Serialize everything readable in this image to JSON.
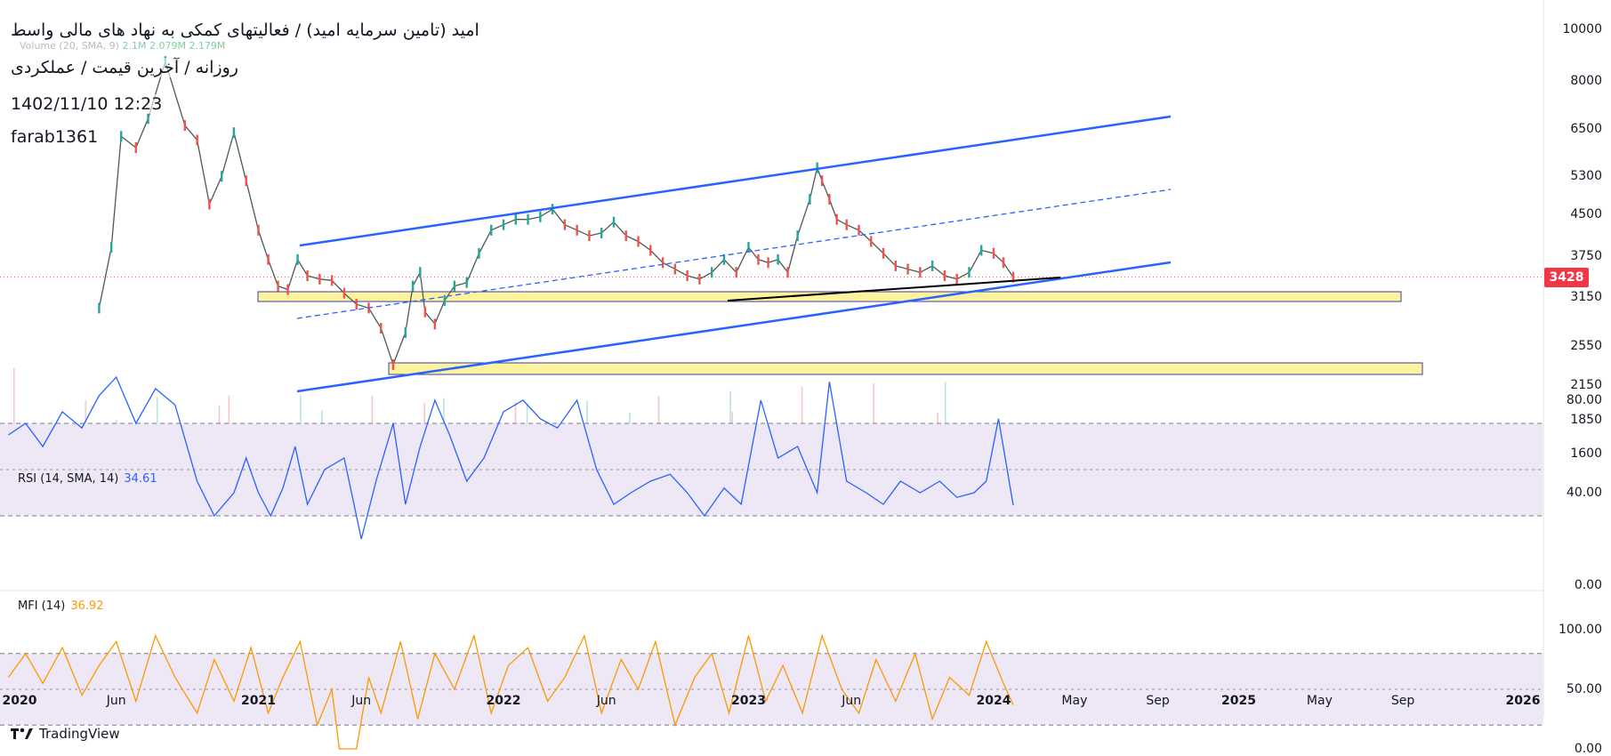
{
  "header": {
    "title": "امید (تامین سرمایه امید) / فعالیتهای کمکی به نهاد های مالی واسط",
    "subtitle": "روزانه / آخرین قیمت / عملکردی",
    "datetime": "1402/11/10 12:23",
    "author": "farab1361",
    "volume_label": "Volume (20, SMA, 9)",
    "volume_values": "2.1‌M  2.079M  2.179M"
  },
  "colors": {
    "up": "#26a69a",
    "down": "#ef5350",
    "channel": "#2962ff",
    "zone_fill": "#fdf39e",
    "zone_border": "#3c3ca0",
    "rsi": "#2962ff",
    "mfi": "#ff9800",
    "band_fill": "#ede7f6",
    "price_tag": "#f23645"
  },
  "chart_data": [
    {
      "type": "line",
      "name": "price",
      "scale": "log",
      "y_ticks": [
        "10000",
        "8000",
        "6500",
        "5300",
        "4500",
        "3750",
        "3150",
        "2550",
        "2150",
        "1850",
        "1600"
      ],
      "y_tick_values": [
        10000,
        8000,
        6500,
        5300,
        4500,
        3750,
        3150,
        2550,
        2150,
        1850,
        1600
      ],
      "x_ticks": [
        {
          "label": "2020",
          "d": 2020.0,
          "bold": true
        },
        {
          "label": "Jun",
          "d": 2020.42,
          "bold": false
        },
        {
          "label": "2021",
          "d": 2021.0,
          "bold": true
        },
        {
          "label": "Jun",
          "d": 2021.42,
          "bold": false
        },
        {
          "label": "2022",
          "d": 2022.0,
          "bold": true
        },
        {
          "label": "Jun",
          "d": 2022.42,
          "bold": false
        },
        {
          "label": "2023",
          "d": 2023.0,
          "bold": true
        },
        {
          "label": "Jun",
          "d": 2023.42,
          "bold": false
        },
        {
          "label": "2024",
          "d": 2024.0,
          "bold": true
        },
        {
          "label": "May",
          "d": 2024.33,
          "bold": false
        },
        {
          "label": "Sep",
          "d": 2024.67,
          "bold": false
        },
        {
          "label": "2025",
          "d": 2025.0,
          "bold": true
        },
        {
          "label": "May",
          "d": 2025.33,
          "bold": false
        },
        {
          "label": "Sep",
          "d": 2025.67,
          "bold": false
        },
        {
          "label": "2026",
          "d": 2026.0,
          "bold": true
        }
      ],
      "last_price": 3428,
      "x": [
        2020.35,
        2020.4,
        2020.44,
        2020.5,
        2020.55,
        2020.62,
        2020.7,
        2020.75,
        2020.8,
        2020.85,
        2020.9,
        2020.95,
        2021.0,
        2021.04,
        2021.08,
        2021.12,
        2021.16,
        2021.2,
        2021.25,
        2021.3,
        2021.35,
        2021.4,
        2021.45,
        2021.5,
        2021.55,
        2021.6,
        2021.63,
        2021.66,
        2021.68,
        2021.72,
        2021.76,
        2021.8,
        2021.85,
        2021.9,
        2021.95,
        2022.0,
        2022.05,
        2022.1,
        2022.15,
        2022.2,
        2022.25,
        2022.3,
        2022.35,
        2022.4,
        2022.45,
        2022.5,
        2022.55,
        2022.6,
        2022.65,
        2022.7,
        2022.75,
        2022.8,
        2022.85,
        2022.9,
        2022.95,
        2023.0,
        2023.04,
        2023.08,
        2023.12,
        2023.16,
        2023.2,
        2023.25,
        2023.28,
        2023.3,
        2023.33,
        2023.36,
        2023.4,
        2023.45,
        2023.5,
        2023.55,
        2023.6,
        2023.65,
        2023.7,
        2023.75,
        2023.8,
        2023.85,
        2023.9,
        2023.95,
        2024.0,
        2024.04,
        2024.08
      ],
      "close": [
        3000,
        3900,
        6300,
        6000,
        6800,
        8700,
        6600,
        6200,
        4700,
        5300,
        6400,
        5200,
        4200,
        3700,
        3300,
        3250,
        3700,
        3450,
        3400,
        3380,
        3200,
        3050,
        3000,
        2750,
        2350,
        2700,
        3300,
        3500,
        2950,
        2800,
        3100,
        3300,
        3350,
        3800,
        4200,
        4300,
        4400,
        4400,
        4450,
        4600,
        4300,
        4200,
        4100,
        4150,
        4350,
        4100,
        4000,
        3850,
        3650,
        3550,
        3450,
        3400,
        3500,
        3700,
        3500,
        3900,
        3700,
        3650,
        3700,
        3500,
        4100,
        4800,
        5500,
        5200,
        4800,
        4400,
        4300,
        4200,
        4000,
        3800,
        3600,
        3550,
        3500,
        3600,
        3450,
        3400,
        3500,
        3850,
        3800,
        3650,
        3428
      ]
    },
    {
      "type": "line",
      "name": "RSI (14, SMA, 14)",
      "value_label": "34.61",
      "y_ticks": [
        "80.00",
        "40.00",
        "0.00"
      ],
      "y_tick_values": [
        80,
        40,
        0
      ],
      "band": [
        30,
        70
      ],
      "x": [
        2019.98,
        2020.05,
        2020.12,
        2020.2,
        2020.28,
        2020.35,
        2020.42,
        2020.5,
        2020.58,
        2020.66,
        2020.75,
        2020.82,
        2020.9,
        2020.95,
        2021.0,
        2021.05,
        2021.1,
        2021.15,
        2021.2,
        2021.27,
        2021.35,
        2021.42,
        2021.48,
        2021.55,
        2021.6,
        2021.66,
        2021.72,
        2021.78,
        2021.85,
        2021.92,
        2022.0,
        2022.08,
        2022.15,
        2022.22,
        2022.3,
        2022.38,
        2022.45,
        2022.52,
        2022.6,
        2022.68,
        2022.75,
        2022.82,
        2022.9,
        2022.97,
        2023.05,
        2023.12,
        2023.2,
        2023.28,
        2023.33,
        2023.4,
        2023.48,
        2023.55,
        2023.62,
        2023.7,
        2023.78,
        2023.85,
        2023.92,
        2023.97,
        2024.02,
        2024.08
      ],
      "values": [
        65,
        70,
        60,
        75,
        68,
        82,
        90,
        70,
        85,
        78,
        45,
        30,
        40,
        55,
        40,
        30,
        42,
        60,
        35,
        50,
        55,
        20,
        45,
        70,
        35,
        60,
        80,
        65,
        45,
        55,
        75,
        80,
        72,
        68,
        80,
        50,
        35,
        40,
        45,
        48,
        40,
        30,
        42,
        35,
        80,
        55,
        60,
        40,
        88,
        45,
        40,
        35,
        45,
        40,
        45,
        38,
        40,
        45,
        72,
        34.61
      ]
    },
    {
      "type": "line",
      "name": "MFI (14)",
      "value_label": "36.92",
      "y_ticks": [
        "100.00",
        "50.00",
        "0.00"
      ],
      "y_tick_values": [
        100,
        50,
        0
      ],
      "band": [
        20,
        80
      ],
      "x": [
        2019.98,
        2020.05,
        2020.12,
        2020.2,
        2020.28,
        2020.35,
        2020.42,
        2020.5,
        2020.58,
        2020.66,
        2020.75,
        2020.82,
        2020.9,
        2020.97,
        2021.04,
        2021.1,
        2021.17,
        2021.24,
        2021.3,
        2021.33,
        2021.4,
        2021.45,
        2021.5,
        2021.58,
        2021.65,
        2021.72,
        2021.8,
        2021.88,
        2021.95,
        2022.02,
        2022.1,
        2022.18,
        2022.25,
        2022.33,
        2022.4,
        2022.48,
        2022.55,
        2022.62,
        2022.7,
        2022.78,
        2022.85,
        2022.92,
        2023.0,
        2023.07,
        2023.14,
        2023.22,
        2023.3,
        2023.38,
        2023.45,
        2023.52,
        2023.6,
        2023.68,
        2023.75,
        2023.82,
        2023.9,
        2023.97,
        2024.04,
        2024.08
      ],
      "values": [
        60,
        80,
        55,
        85,
        45,
        70,
        90,
        40,
        95,
        60,
        30,
        75,
        40,
        85,
        30,
        60,
        90,
        20,
        50,
        0,
        0,
        60,
        30,
        90,
        25,
        80,
        50,
        95,
        30,
        70,
        85,
        40,
        60,
        95,
        30,
        75,
        50,
        90,
        20,
        60,
        80,
        30,
        95,
        40,
        70,
        30,
        95,
        50,
        30,
        75,
        40,
        80,
        25,
        60,
        45,
        90,
        55,
        36.92
      ]
    }
  ]
}
